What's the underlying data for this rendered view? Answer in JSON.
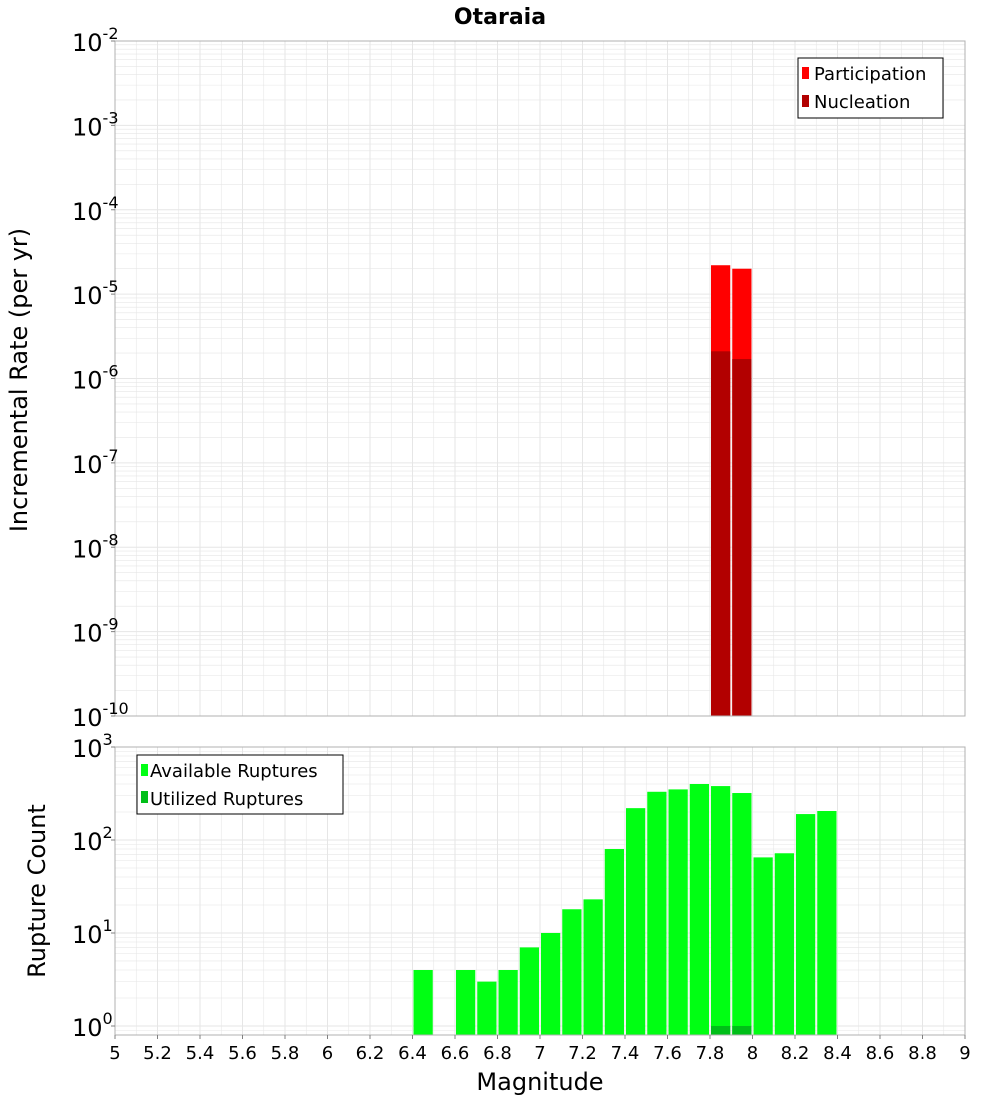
{
  "title": "Otaraia",
  "xlabel": "Magnitude",
  "x_ticks": [
    "5",
    "5.2",
    "5.4",
    "5.6",
    "5.8",
    "6",
    "6.2",
    "6.4",
    "6.6",
    "6.8",
    "7",
    "7.2",
    "7.4",
    "7.6",
    "7.8",
    "8",
    "8.2",
    "8.4",
    "8.6",
    "8.8",
    "9"
  ],
  "colors": {
    "participation": "#ff0000",
    "nucleation": "#b20000",
    "available": "#00ff13",
    "utilized": "#00bf18",
    "grid": "#e6e6e6",
    "frame": "#b0b0b0"
  },
  "chart_data": [
    {
      "type": "bar",
      "title": "Otaraia",
      "xlabel": "Magnitude",
      "ylabel": "Incremental Rate (per yr)",
      "xlim": [
        5,
        9
      ],
      "ylim": [
        1e-10,
        0.01
      ],
      "yscale": "log",
      "y_tick_exponents": [
        "-2",
        "-3",
        "-4",
        "-5",
        "-6",
        "-7",
        "-8",
        "-9",
        "-10"
      ],
      "bin_width": 0.1,
      "grid": true,
      "legend_position": "top-right",
      "series": [
        {
          "name": "Participation",
          "x": [
            7.85,
            7.95
          ],
          "values": [
            2.2e-05,
            2e-05
          ]
        },
        {
          "name": "Nucleation",
          "x": [
            7.85,
            7.95
          ],
          "values": [
            2.1e-06,
            1.7e-06
          ]
        }
      ]
    },
    {
      "type": "bar",
      "xlabel": "Magnitude",
      "ylabel": "Rupture Count",
      "xlim": [
        5,
        9
      ],
      "ylim": [
        0.8,
        1000
      ],
      "yscale": "log",
      "y_tick_exponents": [
        "3",
        "2",
        "1",
        "0"
      ],
      "bin_width": 0.1,
      "grid": true,
      "legend_position": "top-left",
      "series": [
        {
          "name": "Available Ruptures",
          "x": [
            6.45,
            6.65,
            6.75,
            6.85,
            6.95,
            7.05,
            7.15,
            7.25,
            7.35,
            7.45,
            7.55,
            7.65,
            7.75,
            7.85,
            7.95,
            8.05,
            8.15,
            8.25,
            8.35
          ],
          "values": [
            4,
            4,
            3,
            4,
            7,
            10,
            18,
            23,
            80,
            220,
            330,
            350,
            400,
            380,
            320,
            65,
            72,
            190,
            205
          ]
        },
        {
          "name": "Utilized Ruptures",
          "x": [
            7.85,
            7.95
          ],
          "values": [
            1,
            1
          ]
        }
      ]
    }
  ]
}
